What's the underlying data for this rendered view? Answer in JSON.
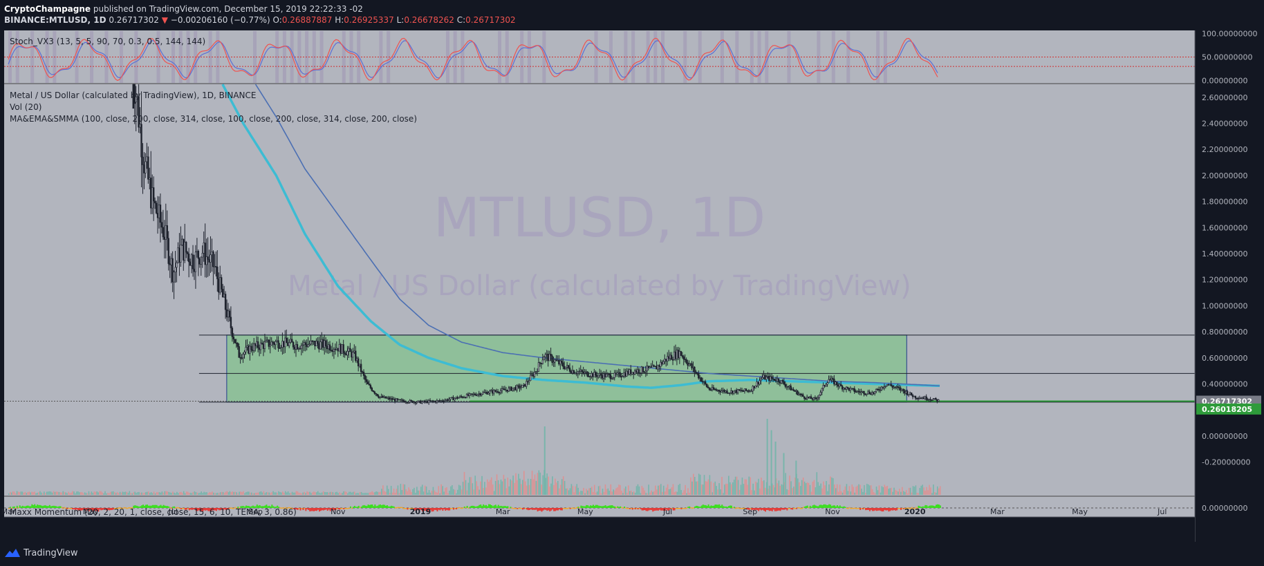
{
  "header": {
    "author": "CryptoChampagne",
    "published_text": "published on TradingView.com, December 15, 2019 22:22:33 -02",
    "symbol": "BINANCE:MTLUSD, 1D",
    "last": "0.26717302",
    "change_arrow": "▼",
    "change": "−0.00206160 (−0.77%)",
    "o_label": "O:",
    "o_value": "0.26887887",
    "h_label": "H:",
    "h_value": "0.26925337",
    "l_label": "L:",
    "l_value": "0.26678262",
    "c_label": "C:",
    "c_value": "0.26717302"
  },
  "footer": {
    "brand": "TradingView",
    "logo_icon": "tradingview-logo-icon"
  },
  "colors": {
    "background": "#131722",
    "pane": "#b2b5be",
    "candle": "#1e222d",
    "ema_line": "#3dbcd3",
    "ma_line": "#4b6fb3",
    "zone_fill": "#8fbf9a",
    "support_green": "#2e9b3a",
    "stoch_k": "#ef5350",
    "stoch_d": "#5b6fd6",
    "vol_up": "#6fb5a8",
    "vol_down": "#e08e8e"
  },
  "chart_data": {
    "type": "candlestick",
    "symbol": "MTLUSD",
    "interval": "1D",
    "watermark_title": "MTLUSD, 1D",
    "watermark_subtitle": "Metal / US Dollar (calculated by TradingView)",
    "legend": [
      "Metal / US Dollar (calculated by TradingView), 1D, BINANCE",
      "Vol (20)",
      "MA&EMA&SMMA (100, close, 200, close, 314, close, 100, close, 200, close, 314, close, 200, close)"
    ],
    "price_axis": {
      "ticks": [
        "2.60000000",
        "2.40000000",
        "2.20000000",
        "2.00000000",
        "1.80000000",
        "1.60000000",
        "1.40000000",
        "1.20000000",
        "1.00000000",
        "0.80000000",
        "0.60000000",
        "0.40000000",
        "0.20000000",
        "0.00000000",
        "-0.20000000"
      ],
      "tick_values": [
        2.6,
        2.4,
        2.2,
        2.0,
        1.8,
        1.6,
        1.4,
        1.2,
        1.0,
        0.8,
        0.6,
        0.4,
        0.2,
        0.0,
        -0.2
      ],
      "range": [
        -0.25,
        2.7
      ]
    },
    "time_axis": {
      "labels": [
        "Mar",
        "May",
        "Jul",
        "Sep",
        "Nov",
        "2019",
        "Mar",
        "May",
        "Jul",
        "Sep",
        "Nov",
        "2020",
        "Mar",
        "May",
        "Jul"
      ],
      "bold": [
        false,
        false,
        false,
        false,
        false,
        true,
        false,
        false,
        false,
        false,
        false,
        true,
        false,
        false,
        false
      ],
      "months_index": [
        0,
        2,
        4,
        6,
        8,
        10,
        12,
        14,
        16,
        18,
        20,
        22,
        24,
        26,
        28
      ]
    },
    "price_labels": [
      {
        "text": "0.26717302",
        "value": 0.26717302,
        "style": "current"
      },
      {
        "text": "0.26018205",
        "value": 0.26018205,
        "style": "support"
      }
    ],
    "levels": [
      0.775,
      0.48,
      0.26018205
    ],
    "zone": {
      "month_start": 5.3,
      "month_end": 21.8,
      "top": 0.775,
      "bottom": 0.26018205
    },
    "price_path": [
      [
        3.0,
        2.9
      ],
      [
        3.3,
        2.1
      ],
      [
        3.5,
        1.8
      ],
      [
        3.8,
        1.55
      ],
      [
        4.0,
        1.25
      ],
      [
        4.2,
        1.45
      ],
      [
        4.5,
        1.35
      ],
      [
        4.7,
        1.42
      ],
      [
        5.0,
        1.3
      ],
      [
        5.3,
        0.95
      ],
      [
        5.6,
        0.62
      ],
      [
        5.9,
        0.68
      ],
      [
        6.2,
        0.7
      ],
      [
        6.5,
        0.72
      ],
      [
        7.0,
        0.7
      ],
      [
        7.5,
        0.71
      ],
      [
        8.0,
        0.68
      ],
      [
        8.4,
        0.62
      ],
      [
        8.7,
        0.4
      ],
      [
        9.0,
        0.3
      ],
      [
        9.5,
        0.27
      ],
      [
        10.0,
        0.26
      ],
      [
        10.5,
        0.27
      ],
      [
        11.0,
        0.3
      ],
      [
        11.5,
        0.33
      ],
      [
        12.0,
        0.35
      ],
      [
        12.5,
        0.38
      ],
      [
        12.8,
        0.5
      ],
      [
        13.0,
        0.62
      ],
      [
        13.3,
        0.57
      ],
      [
        13.7,
        0.5
      ],
      [
        14.2,
        0.47
      ],
      [
        14.7,
        0.46
      ],
      [
        15.2,
        0.5
      ],
      [
        15.7,
        0.52
      ],
      [
        16.0,
        0.6
      ],
      [
        16.3,
        0.64
      ],
      [
        16.6,
        0.52
      ],
      [
        17.0,
        0.36
      ],
      [
        17.5,
        0.34
      ],
      [
        18.0,
        0.35
      ],
      [
        18.3,
        0.45
      ],
      [
        18.7,
        0.43
      ],
      [
        19.0,
        0.36
      ],
      [
        19.3,
        0.3
      ],
      [
        19.6,
        0.28
      ],
      [
        19.9,
        0.44
      ],
      [
        20.2,
        0.38
      ],
      [
        20.6,
        0.34
      ],
      [
        21.0,
        0.33
      ],
      [
        21.3,
        0.4
      ],
      [
        21.7,
        0.35
      ],
      [
        22.0,
        0.3
      ],
      [
        22.3,
        0.29
      ],
      [
        22.6,
        0.27
      ]
    ],
    "ema_path": [
      [
        5.2,
        2.7
      ],
      [
        5.7,
        2.4
      ],
      [
        6.5,
        2.0
      ],
      [
        7.2,
        1.55
      ],
      [
        8.0,
        1.15
      ],
      [
        8.8,
        0.88
      ],
      [
        9.5,
        0.7
      ],
      [
        10.2,
        0.6
      ],
      [
        11.0,
        0.52
      ],
      [
        12.0,
        0.46
      ],
      [
        13.0,
        0.43
      ],
      [
        14.0,
        0.41
      ],
      [
        15.0,
        0.38
      ],
      [
        15.6,
        0.37
      ],
      [
        16.3,
        0.39
      ],
      [
        17.0,
        0.42
      ],
      [
        18.0,
        0.43
      ],
      [
        19.0,
        0.42
      ],
      [
        20.0,
        0.41
      ],
      [
        21.0,
        0.4
      ],
      [
        22.0,
        0.39
      ],
      [
        22.6,
        0.385
      ]
    ],
    "ma_path": [
      [
        6.0,
        2.7
      ],
      [
        6.5,
        2.45
      ],
      [
        7.2,
        2.05
      ],
      [
        8.0,
        1.7
      ],
      [
        8.8,
        1.35
      ],
      [
        9.5,
        1.05
      ],
      [
        10.2,
        0.85
      ],
      [
        11.0,
        0.72
      ],
      [
        12.0,
        0.64
      ],
      [
        13.0,
        0.6
      ],
      [
        14.0,
        0.57
      ],
      [
        15.0,
        0.54
      ],
      [
        16.0,
        0.51
      ],
      [
        17.0,
        0.48
      ],
      [
        18.0,
        0.46
      ],
      [
        19.0,
        0.44
      ],
      [
        20.0,
        0.42
      ],
      [
        21.0,
        0.41
      ],
      [
        22.0,
        0.395
      ],
      [
        22.6,
        0.385
      ]
    ],
    "stochastic": {
      "legend": "Stoch_VX3 (13, 5, 5, 90, 70, 0.3, 0.5, 144, 144)",
      "ticks": [
        "100.00000000",
        "50.00000000",
        "0.00000000"
      ],
      "tick_values": [
        100,
        50,
        0
      ],
      "bands": [
        50,
        30
      ],
      "range": [
        -5,
        105
      ]
    },
    "volume": {
      "spikes": [
        [
          13.0,
          0.9
        ],
        [
          18.4,
          1.0
        ],
        [
          18.5,
          0.85
        ],
        [
          18.6,
          0.7
        ],
        [
          18.8,
          0.55
        ],
        [
          19.1,
          0.45
        ]
      ]
    },
    "momentum": {
      "legend": "Maxx Momentum (20, 2, 20, 1, close, close, 15, 6, 10, TEMA, 3, 0.86)",
      "ticks": [
        "0.00000000"
      ],
      "tick_values": [
        0
      ]
    }
  }
}
